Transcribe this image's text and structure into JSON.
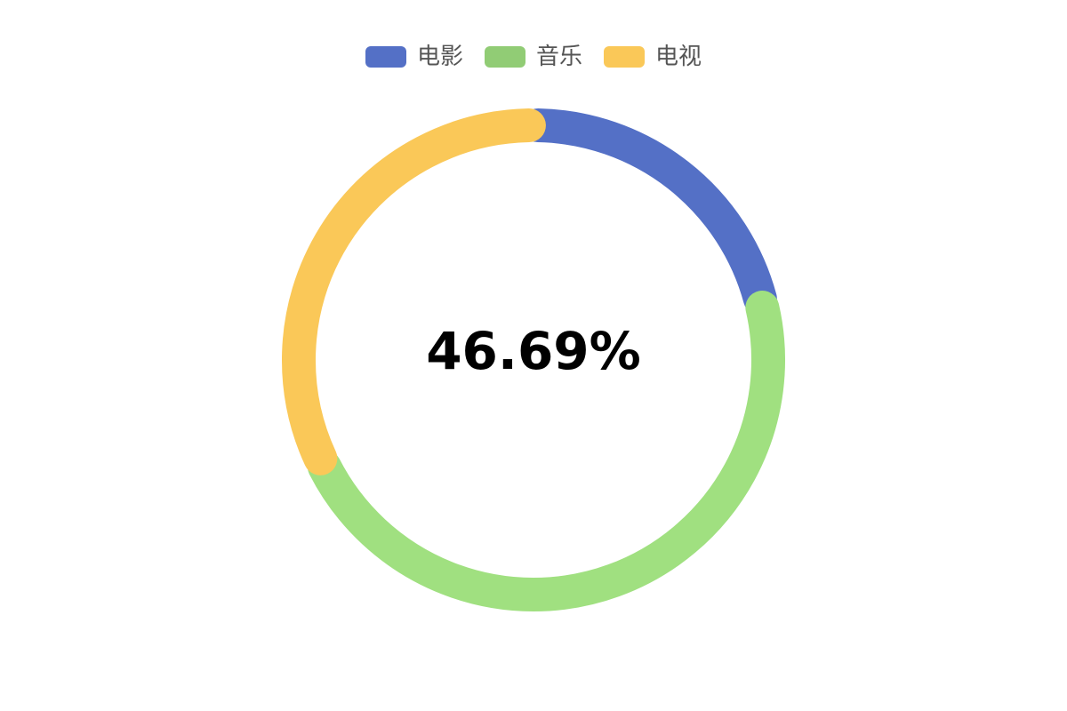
{
  "chart_data": {
    "type": "pie",
    "donut": true,
    "legend_position": "top-center",
    "slices": [
      {
        "name": "电影",
        "value": 21.11,
        "color": "#5470c6"
      },
      {
        "name": "音乐",
        "value": 46.69,
        "color": "#a0e080"
      },
      {
        "name": "电视",
        "value": 32.2,
        "color": "#fac858"
      }
    ],
    "center_label": "46.69%"
  },
  "legend": [
    {
      "label": "电影",
      "color": "#5470c6"
    },
    {
      "label": "音乐",
      "color": "#91cc75"
    },
    {
      "label": "电视",
      "color": "#fac858"
    }
  ]
}
